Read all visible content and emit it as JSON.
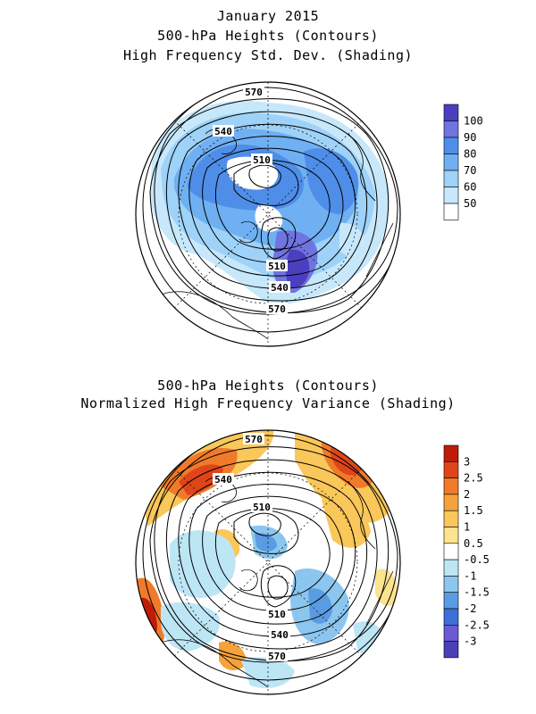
{
  "top": {
    "title_line1": "January 2015",
    "title_line2": "500-hPa Heights (Contours)",
    "title_line3": "High Frequency Std. Dev. (Shading)",
    "contour_labels": [
      "570",
      "540",
      "510",
      "510",
      "540",
      "570"
    ],
    "colorbar": {
      "ticks": [
        "100",
        "90",
        "80",
        "70",
        "60",
        "50"
      ],
      "colors": [
        "#4b3fbf",
        "#6f74e0",
        "#4f8ee8",
        "#6fb0f2",
        "#9ed2f8",
        "#c7e8fb",
        "#ffffff"
      ]
    }
  },
  "bottom": {
    "title_line1": "500-hPa Heights (Contours)",
    "title_line2": "Normalized High Frequency Variance (Shading)",
    "contour_labels": [
      "570",
      "540",
      "510",
      "510",
      "540",
      "570"
    ],
    "colorbar": {
      "ticks": [
        "3",
        "2.5",
        "2",
        "1.5",
        "1",
        "0.5",
        "-0.5",
        "-1",
        "-1.5",
        "-2",
        "-2.5",
        "-3"
      ],
      "colors": [
        "#c01a0a",
        "#e0451a",
        "#f07a2a",
        "#f6a23c",
        "#f9c75a",
        "#fbe38f",
        "#ffffff",
        "#bde6f5",
        "#8cc6ee",
        "#5a9ce3",
        "#3e6fd6",
        "#6a5ad6",
        "#4a3fb8"
      ]
    }
  }
}
